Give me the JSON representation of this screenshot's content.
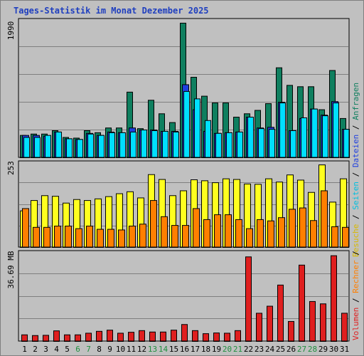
{
  "title": "Tages-Statistik im Monat Dezember 2025",
  "colors": {
    "background": "#c0c0c0",
    "anfragen": "#0f7f5f",
    "dateien": "#1f3fdf",
    "seiten": "#00dfff",
    "besuche": "#ffff1f",
    "rechner": "#ff7f00",
    "volumen": "#df1f1f",
    "grid": "#7f7f7f",
    "weekend_label": "#1f8f3f",
    "weekday_label": "#000000"
  },
  "chart_data": [
    {
      "type": "bar",
      "panel": "top",
      "y_max_label": "1990",
      "ylim": [
        0,
        1990
      ],
      "x": [
        1,
        2,
        3,
        4,
        5,
        6,
        7,
        8,
        9,
        10,
        11,
        12,
        13,
        14,
        15,
        16,
        17,
        18,
        19,
        20,
        21,
        22,
        23,
        24,
        25,
        26,
        27,
        28,
        29,
        30,
        31
      ],
      "series": [
        {
          "name": "Anfragen",
          "values": [
            330,
            350,
            350,
            400,
            300,
            290,
            400,
            370,
            440,
            440,
            970,
            430,
            850,
            650,
            520,
            1990,
            1190,
            910,
            810,
            810,
            600,
            650,
            700,
            800,
            1330,
            1070,
            1050,
            1050,
            710,
            1290,
            580
          ]
        },
        {
          "name": "Dateien",
          "values": [
            330,
            330,
            320,
            380,
            280,
            270,
            360,
            330,
            380,
            370,
            440,
            410,
            410,
            390,
            390,
            1080,
            710,
            390,
            360,
            370,
            380,
            600,
            440,
            450,
            820,
            400,
            580,
            720,
            630,
            830,
            420
          ]
        },
        {
          "name": "Seiten",
          "values": [
            300,
            300,
            330,
            380,
            280,
            270,
            350,
            330,
            370,
            370,
            380,
            410,
            400,
            390,
            380,
            980,
            870,
            550,
            360,
            370,
            380,
            600,
            430,
            420,
            810,
            400,
            590,
            720,
            620,
            810,
            420
          ]
        }
      ]
    },
    {
      "type": "bar",
      "panel": "middle",
      "y_max_label": "253",
      "ylim": [
        0,
        253
      ],
      "x": [
        1,
        2,
        3,
        4,
        5,
        6,
        7,
        8,
        9,
        10,
        11,
        12,
        13,
        14,
        15,
        16,
        17,
        18,
        19,
        20,
        21,
        22,
        23,
        24,
        25,
        26,
        27,
        28,
        29,
        30,
        31
      ],
      "series": [
        {
          "name": "Besuche",
          "values": [
            113,
            145,
            160,
            158,
            137,
            148,
            145,
            150,
            157,
            166,
            172,
            153,
            225,
            210,
            160,
            175,
            209,
            206,
            200,
            212,
            210,
            196,
            195,
            212,
            202,
            224,
            208,
            170,
            255,
            140,
            212
          ]
        },
        {
          "name": "Rechner",
          "values": [
            120,
            62,
            62,
            66,
            66,
            58,
            66,
            56,
            56,
            54,
            66,
            72,
            145,
            95,
            68,
            68,
            120,
            86,
            101,
            101,
            86,
            58,
            86,
            82,
            92,
            118,
            122,
            83,
            175,
            64,
            62
          ]
        }
      ]
    },
    {
      "type": "bar",
      "panel": "bottom",
      "y_max_label": "36.69 MB",
      "ylim": [
        0,
        36.69
      ],
      "unit": "MB",
      "x": [
        1,
        2,
        3,
        4,
        5,
        6,
        7,
        8,
        9,
        10,
        11,
        12,
        13,
        14,
        15,
        16,
        17,
        18,
        19,
        20,
        21,
        22,
        23,
        24,
        25,
        26,
        27,
        28,
        29,
        30,
        31
      ],
      "series": [
        {
          "name": "Volumen",
          "values": [
            2.8,
            2.5,
            2.6,
            4.5,
            2.8,
            2.8,
            3.5,
            4.3,
            4.8,
            3.5,
            3.9,
            4.6,
            4.0,
            4.0,
            4.8,
            7.2,
            4.6,
            3.3,
            3.6,
            3.5,
            4.6,
            36.0,
            12.0,
            15.0,
            24.0,
            8.5,
            32.5,
            17.0,
            16.0,
            36.5,
            12.0
          ]
        }
      ]
    }
  ],
  "x_labels": [
    "1",
    "2",
    "3",
    "4",
    "5",
    "6",
    "7",
    "8",
    "9",
    "10",
    "11",
    "12",
    "13",
    "14",
    "15",
    "16",
    "17",
    "18",
    "19",
    "20",
    "21",
    "22",
    "23",
    "24",
    "25",
    "26",
    "27",
    "28",
    "29",
    "30",
    "31"
  ],
  "weekend_days": [
    "6",
    "7",
    "13",
    "14",
    "20",
    "21",
    "27",
    "28"
  ],
  "legend_top": {
    "anfragen": "Anfragen",
    "dateien": "Dateien",
    "seiten": "Seiten",
    "sep": " / "
  },
  "legend_middle": {
    "besuche": "Besuche",
    "rechner": "Rechner"
  },
  "legend_bottom": {
    "volumen": "Volumen"
  }
}
